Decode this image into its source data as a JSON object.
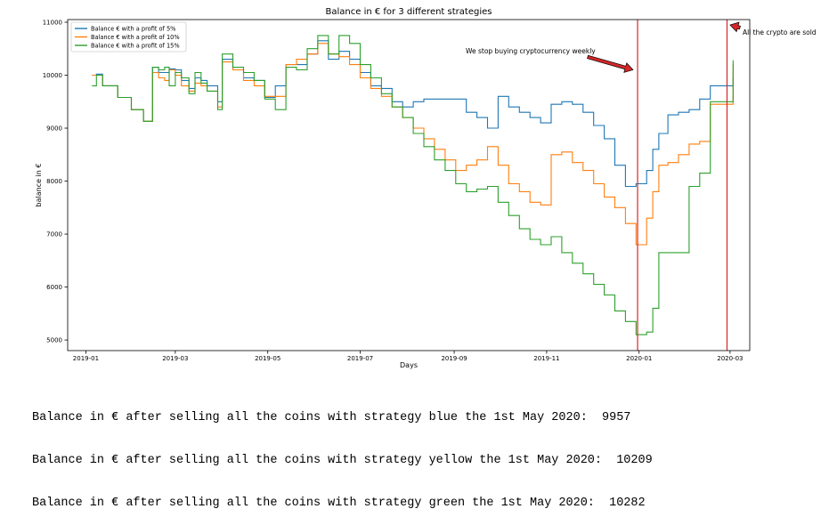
{
  "chart_data": {
    "type": "line",
    "title": "Balance in € for 3 different strategies",
    "xlabel": "Days",
    "ylabel": "balance in €",
    "x_ticks": [
      "2019-01",
      "2019-03",
      "2019-05",
      "2019-07",
      "2019-09",
      "2019-11",
      "2020-01",
      "2020-03"
    ],
    "y_ticks": [
      5000,
      6000,
      7000,
      8000,
      9000,
      10000,
      11000
    ],
    "xlim": [
      "2018-12-20",
      "2020-03-14"
    ],
    "ylim": [
      4800,
      11050
    ],
    "grid": false,
    "legend_position": "top-left",
    "series": [
      {
        "name": "Balance € with a profit of 5%",
        "color": "#1f77b4",
        "points": [
          [
            "2019-01-05",
            10000
          ],
          [
            "2019-01-08",
            10020
          ],
          [
            "2019-01-12",
            9800
          ],
          [
            "2019-01-22",
            9580
          ],
          [
            "2019-01-31",
            9350
          ],
          [
            "2019-02-08",
            9130
          ],
          [
            "2019-02-14",
            10150
          ],
          [
            "2019-02-18",
            10050
          ],
          [
            "2019-02-22",
            10050
          ],
          [
            "2019-02-25",
            10120
          ],
          [
            "2019-03-01",
            10100
          ],
          [
            "2019-03-05",
            9900
          ],
          [
            "2019-03-10",
            9750
          ],
          [
            "2019-03-14",
            9950
          ],
          [
            "2019-03-18",
            9900
          ],
          [
            "2019-03-22",
            9800
          ],
          [
            "2019-03-29",
            9500
          ],
          [
            "2019-04-01",
            10300
          ],
          [
            "2019-04-08",
            10100
          ],
          [
            "2019-04-15",
            9950
          ],
          [
            "2019-04-22",
            9900
          ],
          [
            "2019-04-29",
            9580
          ],
          [
            "2019-05-06",
            9800
          ],
          [
            "2019-05-13",
            10200
          ],
          [
            "2019-05-20",
            10200
          ],
          [
            "2019-05-27",
            10400
          ],
          [
            "2019-06-03",
            10650
          ],
          [
            "2019-06-10",
            10300
          ],
          [
            "2019-06-17",
            10450
          ],
          [
            "2019-06-24",
            10300
          ],
          [
            "2019-07-01",
            10050
          ],
          [
            "2019-07-08",
            9800
          ],
          [
            "2019-07-15",
            9750
          ],
          [
            "2019-07-22",
            9500
          ],
          [
            "2019-07-29",
            9400
          ],
          [
            "2019-08-05",
            9500
          ],
          [
            "2019-08-12",
            9550
          ],
          [
            "2019-08-19",
            9550
          ],
          [
            "2019-08-26",
            9550
          ],
          [
            "2019-09-02",
            9550
          ],
          [
            "2019-09-09",
            9300
          ],
          [
            "2019-09-16",
            9200
          ],
          [
            "2019-09-23",
            9000
          ],
          [
            "2019-09-30",
            9600
          ],
          [
            "2019-10-07",
            9400
          ],
          [
            "2019-10-14",
            9300
          ],
          [
            "2019-10-21",
            9200
          ],
          [
            "2019-10-28",
            9100
          ],
          [
            "2019-11-04",
            9450
          ],
          [
            "2019-11-11",
            9500
          ],
          [
            "2019-11-18",
            9450
          ],
          [
            "2019-11-25",
            9300
          ],
          [
            "2019-12-02",
            9050
          ],
          [
            "2019-12-09",
            8800
          ],
          [
            "2019-12-16",
            8300
          ],
          [
            "2019-12-23",
            7900
          ],
          [
            "2019-12-30",
            7950
          ],
          [
            "2020-01-06",
            8200
          ],
          [
            "2020-01-10",
            8600
          ],
          [
            "2020-01-14",
            8900
          ],
          [
            "2020-01-20",
            9250
          ],
          [
            "2020-01-27",
            9300
          ],
          [
            "2020-02-03",
            9350
          ],
          [
            "2020-02-10",
            9550
          ],
          [
            "2020-02-17",
            9800
          ],
          [
            "2020-02-24",
            9800
          ],
          [
            "2020-03-02",
            9800
          ],
          [
            "2020-03-03",
            9957
          ]
        ]
      },
      {
        "name": "Balance € with a profit of 10%",
        "color": "#ff7f0e",
        "points": [
          [
            "2019-01-05",
            10000
          ],
          [
            "2019-01-08",
            10000
          ],
          [
            "2019-01-12",
            9800
          ],
          [
            "2019-01-22",
            9580
          ],
          [
            "2019-01-31",
            9350
          ],
          [
            "2019-02-08",
            9130
          ],
          [
            "2019-02-14",
            10050
          ],
          [
            "2019-02-18",
            9950
          ],
          [
            "2019-02-22",
            9900
          ],
          [
            "2019-02-25",
            10100
          ],
          [
            "2019-03-01",
            10000
          ],
          [
            "2019-03-05",
            9800
          ],
          [
            "2019-03-10",
            9700
          ],
          [
            "2019-03-14",
            9850
          ],
          [
            "2019-03-18",
            9800
          ],
          [
            "2019-03-22",
            9700
          ],
          [
            "2019-03-29",
            9400
          ],
          [
            "2019-04-01",
            10250
          ],
          [
            "2019-04-08",
            10100
          ],
          [
            "2019-04-15",
            9900
          ],
          [
            "2019-04-22",
            9800
          ],
          [
            "2019-04-29",
            9600
          ],
          [
            "2019-05-06",
            9600
          ],
          [
            "2019-05-13",
            10200
          ],
          [
            "2019-05-20",
            10300
          ],
          [
            "2019-05-27",
            10400
          ],
          [
            "2019-06-03",
            10600
          ],
          [
            "2019-06-10",
            10400
          ],
          [
            "2019-06-17",
            10350
          ],
          [
            "2019-06-24",
            10200
          ],
          [
            "2019-07-01",
            9950
          ],
          [
            "2019-07-08",
            9750
          ],
          [
            "2019-07-15",
            9600
          ],
          [
            "2019-07-22",
            9400
          ],
          [
            "2019-07-29",
            9200
          ],
          [
            "2019-08-05",
            9000
          ],
          [
            "2019-08-12",
            8800
          ],
          [
            "2019-08-19",
            8600
          ],
          [
            "2019-08-26",
            8400
          ],
          [
            "2019-09-02",
            8200
          ],
          [
            "2019-09-09",
            8300
          ],
          [
            "2019-09-16",
            8400
          ],
          [
            "2019-09-23",
            8650
          ],
          [
            "2019-09-30",
            8300
          ],
          [
            "2019-10-07",
            7950
          ],
          [
            "2019-10-14",
            7800
          ],
          [
            "2019-10-21",
            7600
          ],
          [
            "2019-10-28",
            7550
          ],
          [
            "2019-11-04",
            8500
          ],
          [
            "2019-11-11",
            8550
          ],
          [
            "2019-11-18",
            8350
          ],
          [
            "2019-11-25",
            8200
          ],
          [
            "2019-12-02",
            7950
          ],
          [
            "2019-12-09",
            7700
          ],
          [
            "2019-12-16",
            7500
          ],
          [
            "2019-12-23",
            7200
          ],
          [
            "2019-12-30",
            6800
          ],
          [
            "2020-01-06",
            7300
          ],
          [
            "2020-01-10",
            7800
          ],
          [
            "2020-01-14",
            8300
          ],
          [
            "2020-01-20",
            8350
          ],
          [
            "2020-01-27",
            8500
          ],
          [
            "2020-02-03",
            8700
          ],
          [
            "2020-02-10",
            8750
          ],
          [
            "2020-02-17",
            9450
          ],
          [
            "2020-02-24",
            9450
          ],
          [
            "2020-03-02",
            9450
          ],
          [
            "2020-03-03",
            10209
          ]
        ]
      },
      {
        "name": "Balance € with a profit of 15%",
        "color": "#2ca02c",
        "points": [
          [
            "2019-01-05",
            9800
          ],
          [
            "2019-01-08",
            10000
          ],
          [
            "2019-01-12",
            9800
          ],
          [
            "2019-01-22",
            9580
          ],
          [
            "2019-01-31",
            9350
          ],
          [
            "2019-02-08",
            9130
          ],
          [
            "2019-02-14",
            10150
          ],
          [
            "2019-02-18",
            10100
          ],
          [
            "2019-02-22",
            10150
          ],
          [
            "2019-02-25",
            9800
          ],
          [
            "2019-03-01",
            10050
          ],
          [
            "2019-03-05",
            9950
          ],
          [
            "2019-03-10",
            9650
          ],
          [
            "2019-03-14",
            10050
          ],
          [
            "2019-03-18",
            9850
          ],
          [
            "2019-03-22",
            9700
          ],
          [
            "2019-03-29",
            9350
          ],
          [
            "2019-04-01",
            10400
          ],
          [
            "2019-04-08",
            10150
          ],
          [
            "2019-04-15",
            10050
          ],
          [
            "2019-04-22",
            9900
          ],
          [
            "2019-04-29",
            9550
          ],
          [
            "2019-05-06",
            9350
          ],
          [
            "2019-05-13",
            10150
          ],
          [
            "2019-05-20",
            10100
          ],
          [
            "2019-05-27",
            10500
          ],
          [
            "2019-06-03",
            10750
          ],
          [
            "2019-06-10",
            10400
          ],
          [
            "2019-06-17",
            10750
          ],
          [
            "2019-06-24",
            10600
          ],
          [
            "2019-07-01",
            10200
          ],
          [
            "2019-07-08",
            9950
          ],
          [
            "2019-07-15",
            9650
          ],
          [
            "2019-07-22",
            9400
          ],
          [
            "2019-07-29",
            9200
          ],
          [
            "2019-08-05",
            8900
          ],
          [
            "2019-08-12",
            8650
          ],
          [
            "2019-08-19",
            8400
          ],
          [
            "2019-08-26",
            8200
          ],
          [
            "2019-09-02",
            7950
          ],
          [
            "2019-09-09",
            7800
          ],
          [
            "2019-09-16",
            7850
          ],
          [
            "2019-09-23",
            7900
          ],
          [
            "2019-09-30",
            7600
          ],
          [
            "2019-10-07",
            7350
          ],
          [
            "2019-10-14",
            7100
          ],
          [
            "2019-10-21",
            6900
          ],
          [
            "2019-10-28",
            6800
          ],
          [
            "2019-11-04",
            6950
          ],
          [
            "2019-11-11",
            6650
          ],
          [
            "2019-11-18",
            6450
          ],
          [
            "2019-11-25",
            6250
          ],
          [
            "2019-12-02",
            6050
          ],
          [
            "2019-12-09",
            5850
          ],
          [
            "2019-12-16",
            5550
          ],
          [
            "2019-12-23",
            5350
          ],
          [
            "2019-12-30",
            5100
          ],
          [
            "2020-01-06",
            5150
          ],
          [
            "2020-01-10",
            5600
          ],
          [
            "2020-01-14",
            6650
          ],
          [
            "2020-01-20",
            6650
          ],
          [
            "2020-01-27",
            6650
          ],
          [
            "2020-02-03",
            7900
          ],
          [
            "2020-02-10",
            8150
          ],
          [
            "2020-02-17",
            9500
          ],
          [
            "2020-02-24",
            9500
          ],
          [
            "2020-03-02",
            9500
          ],
          [
            "2020-03-03",
            10282
          ]
        ]
      }
    ],
    "vlines": [
      {
        "x": "2019-12-31",
        "color": "#d62728"
      },
      {
        "x": "2020-02-28",
        "color": "#d62728"
      }
    ],
    "annotations": [
      {
        "text": "We stop buying cryptocurrency weekly",
        "target_x": "2019-12-28",
        "target_y": 10100
      },
      {
        "text": "All the crypto are sold",
        "target_x": "2020-03-01",
        "target_y": 10950
      }
    ]
  },
  "output_lines": [
    "Balance in € after selling all the coins with strategy blue the 1st May 2020:  9957",
    "Balance in € after selling all the coins with strategy yellow the 1st May 2020:  10209",
    "Balance in € after selling all the coins with strategy green the 1st May 2020:  10282"
  ]
}
